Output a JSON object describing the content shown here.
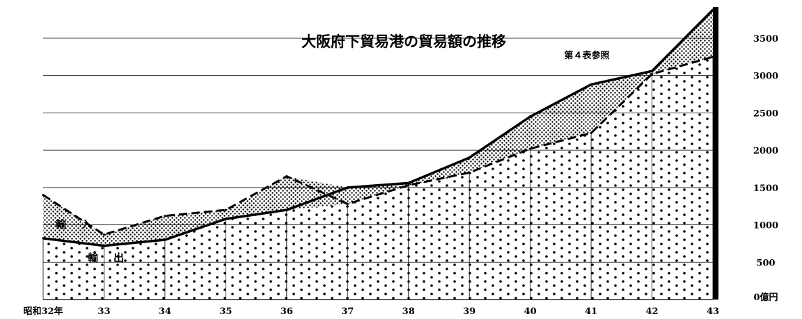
{
  "chart_data": {
    "type": "area",
    "title": "大阪府下貿易港の貿易額の推移",
    "note": "第４表参照",
    "categories": [
      "昭和32年",
      "33",
      "34",
      "35",
      "36",
      "37",
      "38",
      "39",
      "40",
      "41",
      "42",
      "43"
    ],
    "series": [
      {
        "name": "輸出",
        "values": [
          820,
          720,
          800,
          1080,
          1200,
          1500,
          1560,
          1900,
          2450,
          2880,
          3060,
          3880
        ]
      },
      {
        "name": "輸入",
        "values": [
          1400,
          870,
          1120,
          1200,
          1650,
          1280,
          1530,
          1700,
          2020,
          2230,
          3020,
          3250
        ]
      }
    ],
    "y_tick_labels": [
      "0億円",
      "500",
      "1000",
      "1500",
      "2000",
      "2500",
      "3000",
      "3500"
    ],
    "y_tick_values": [
      0,
      500,
      1000,
      1500,
      2000,
      2500,
      3000,
      3500
    ],
    "ylim": [
      0,
      3900
    ],
    "grid": true
  }
}
